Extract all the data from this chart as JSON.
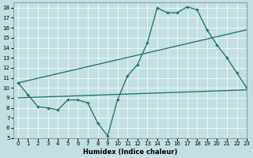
{
  "xlabel": "Humidex (Indice chaleur)",
  "bg_color": "#c2e0e0",
  "line_color": "#1a6b6b",
  "xlim": [
    -0.5,
    23
  ],
  "ylim": [
    5,
    18.5
  ],
  "xticks": [
    0,
    1,
    2,
    3,
    4,
    5,
    6,
    7,
    8,
    9,
    10,
    11,
    12,
    13,
    14,
    15,
    16,
    17,
    18,
    19,
    20,
    21,
    22,
    23
  ],
  "yticks": [
    5,
    6,
    7,
    8,
    9,
    10,
    11,
    12,
    13,
    14,
    15,
    16,
    17,
    18
  ],
  "curve1_x": [
    0,
    1,
    2,
    3,
    4,
    5,
    6,
    7,
    8,
    9,
    10,
    11,
    12,
    13,
    14,
    15,
    16,
    17,
    18,
    19,
    20,
    21,
    22,
    23
  ],
  "curve1_y": [
    10.5,
    9.3,
    8.1,
    8.0,
    7.8,
    8.8,
    8.8,
    8.5,
    6.5,
    5.2,
    8.8,
    11.2,
    12.3,
    14.5,
    18.0,
    17.5,
    17.5,
    18.1,
    17.8,
    15.8,
    14.3,
    13.0,
    11.5,
    10.0
  ],
  "line1_x": [
    0,
    23
  ],
  "line1_y": [
    10.5,
    15.8
  ],
  "line2_x": [
    0,
    23
  ],
  "line2_y": [
    9.0,
    9.8
  ]
}
